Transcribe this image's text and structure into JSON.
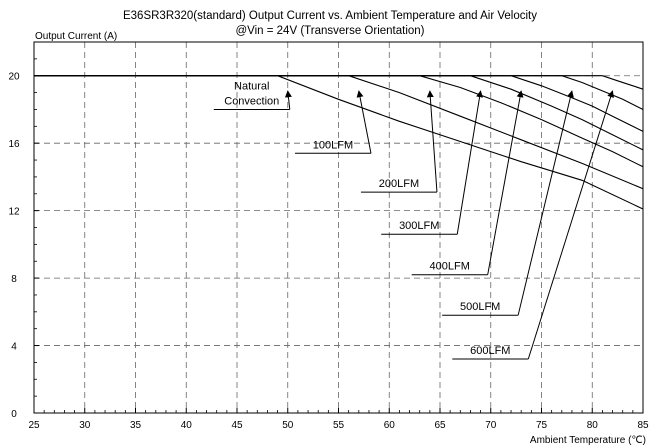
{
  "chart_data": {
    "type": "line",
    "title": "E36SR3R320(standard)  Output Current vs. Ambient Temperature and Air Velocity",
    "subtitle": "@Vin = 24V (Transverse Orientation)",
    "ylabel": "Output Current (A)",
    "xlabel": "Ambient Temperature (℃)",
    "xlim": [
      25,
      85
    ],
    "ylim": [
      0,
      22
    ],
    "xticks": [
      25,
      30,
      35,
      40,
      45,
      50,
      55,
      60,
      65,
      70,
      75,
      80,
      85
    ],
    "yticks": [
      0,
      4,
      8,
      12,
      16,
      20
    ],
    "xtick_labels": [
      "25",
      "30",
      "35",
      "40",
      "45",
      "50",
      "55",
      "60",
      "65",
      "70",
      "75",
      "80",
      "85"
    ],
    "ytick_labels": [
      "0",
      "4",
      "8",
      "12",
      "16",
      "20"
    ],
    "grid": true,
    "legend": "none",
    "series": [
      {
        "x": [
          25,
          49,
          55,
          61,
          67,
          73,
          79,
          85
        ],
        "values": [
          20,
          20,
          18.6,
          17.3,
          16.1,
          14.9,
          13.8,
          12.1
        ]
      },
      {
        "x": [
          25,
          56,
          61,
          67,
          73,
          79,
          85
        ],
        "values": [
          20,
          20,
          19.0,
          17.6,
          16.2,
          14.8,
          13.3
        ]
      },
      {
        "x": [
          25,
          63,
          67,
          71,
          75,
          79,
          82,
          85
        ],
        "values": [
          20,
          20,
          19.3,
          18.4,
          17.4,
          16.3,
          15.5,
          14.6
        ]
      },
      {
        "x": [
          25,
          68,
          72,
          76,
          79,
          82,
          85
        ],
        "values": [
          20,
          20,
          19.2,
          18.2,
          17.4,
          16.5,
          15.6
        ]
      },
      {
        "x": [
          25,
          72,
          75,
          78,
          80,
          82,
          85
        ],
        "values": [
          20,
          20,
          19.4,
          18.7,
          18.2,
          17.6,
          16.7
        ]
      },
      {
        "x": [
          25,
          77,
          79,
          81,
          83,
          85
        ],
        "values": [
          20,
          20,
          19.6,
          19.1,
          18.6,
          18.0
        ]
      },
      {
        "x": [
          25,
          81,
          82.5,
          84,
          85
        ],
        "values": [
          20,
          20,
          19.7,
          19.4,
          19.2
        ]
      }
    ],
    "annotations": [
      {
        "lines": [
          "Natural",
          "Convection"
        ],
        "x": 43.5,
        "y": 18.0
      },
      {
        "lines": [
          "100LFM"
        ],
        "x": 51.5,
        "y": 15.4
      },
      {
        "lines": [
          "200LFM"
        ],
        "x": 58,
        "y": 13.1
      },
      {
        "lines": [
          "300LFM"
        ],
        "x": 60,
        "y": 10.6
      },
      {
        "lines": [
          "400LFM"
        ],
        "x": 63,
        "y": 8.2
      },
      {
        "lines": [
          "500LFM"
        ],
        "x": 66,
        "y": 5.8
      },
      {
        "lines": [
          "600LFM"
        ],
        "x": 67,
        "y": 3.2
      }
    ]
  }
}
